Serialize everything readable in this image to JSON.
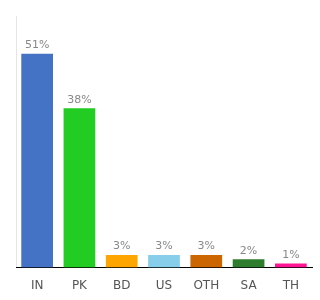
{
  "chart_data": {
    "type": "bar",
    "categories": [
      "IN",
      "PK",
      "BD",
      "US",
      "OTH",
      "SA",
      "TH"
    ],
    "values": [
      51,
      38,
      3,
      3,
      3,
      2,
      1
    ],
    "value_labels": [
      "51%",
      "38%",
      "3%",
      "3%",
      "3%",
      "2%",
      "1%"
    ],
    "colors": [
      "#4472c4",
      "#22cc22",
      "#ffa500",
      "#87ceeb",
      "#cc6600",
      "#2e7d2e",
      "#ff1493"
    ],
    "ylim": [
      0,
      60
    ],
    "grid": false,
    "data_labels": true,
    "tick_labels": "x"
  }
}
